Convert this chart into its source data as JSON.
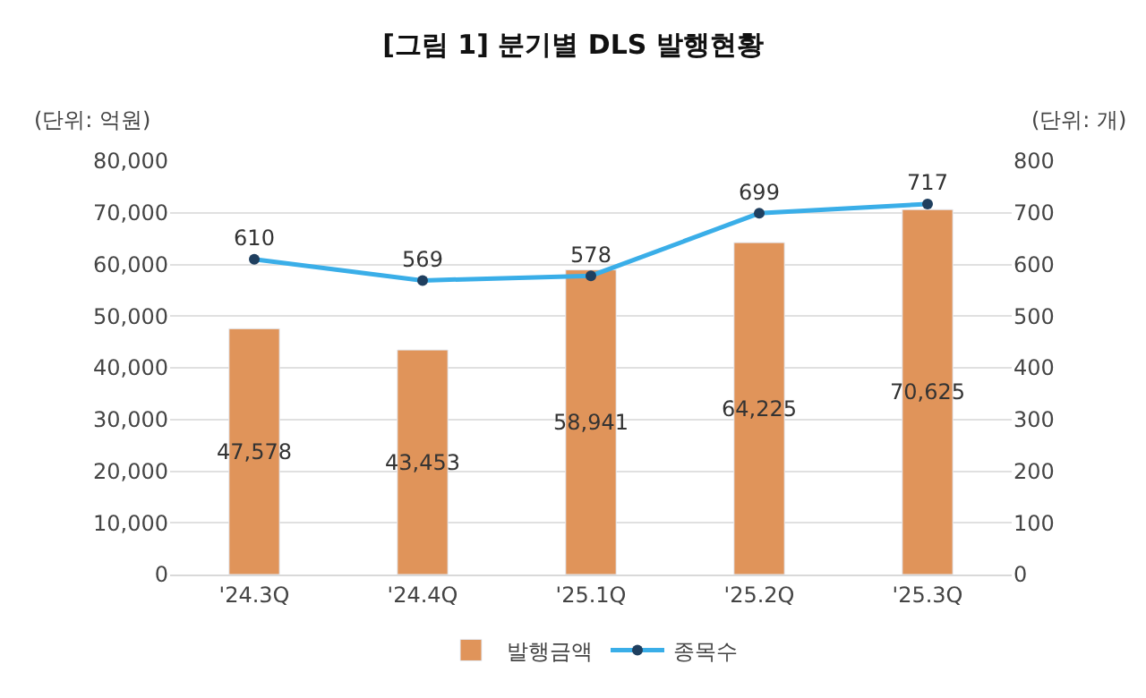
{
  "chart_data": {
    "type": "bar",
    "title": "[그림 1] 분기별 DLS 발행현황",
    "ylabel": "(단위: 억원)",
    "y2label": "(단위: 개)",
    "categories": [
      "'24.3Q",
      "'24.4Q",
      "'25.1Q",
      "'25.2Q",
      "'25.3Q"
    ],
    "series": [
      {
        "name": "발행금액",
        "color": "#e0945a",
        "values": [
          47578,
          43453,
          58941,
          64225,
          70625
        ],
        "value_labels": [
          "47,578",
          "43,453",
          "58,941",
          "64,225",
          "70,625"
        ]
      },
      {
        "name": "종목수",
        "type": "line",
        "axis": "y2",
        "color": "#3aaee8",
        "marker": "circle",
        "values": [
          610,
          569,
          578,
          699,
          717
        ],
        "value_labels": [
          "610",
          "569",
          "578",
          "699",
          "717"
        ]
      }
    ],
    "ylim": [
      0,
      80000
    ],
    "yticks": [
      0,
      {
        "value": 10000,
        "label": "10,000"
      },
      {
        "value": 20000,
        "label": "20,000"
      },
      {
        "value": 30000,
        "label": "30,000"
      },
      {
        "value": 40000,
        "label": "40,000"
      },
      {
        "value": 50000,
        "label": "50,000"
      },
      {
        "value": 60000,
        "label": "60,000"
      },
      {
        "value": 70000,
        "label": "70,000"
      },
      {
        "value": 80000,
        "label": "80,000"
      }
    ],
    "y2lim": [
      0,
      800
    ],
    "y2ticks": [
      0,
      100,
      200,
      300,
      400,
      500,
      600,
      700,
      800
    ],
    "grid": "y",
    "legend": "bottom"
  }
}
